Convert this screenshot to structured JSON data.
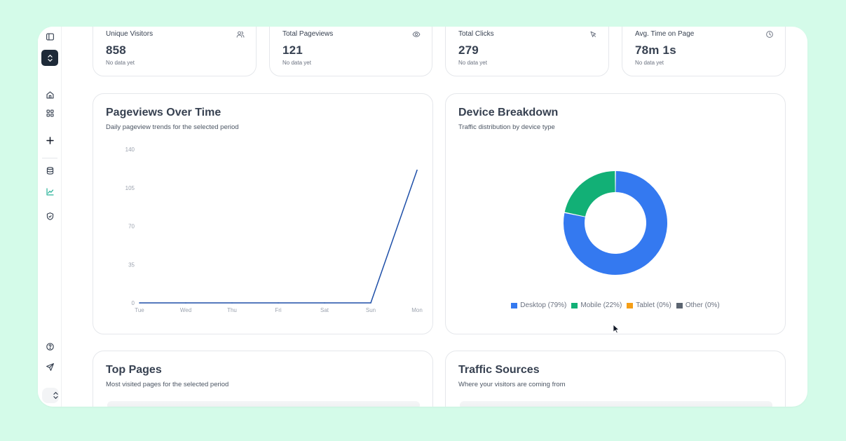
{
  "sidebar": {
    "icons": [
      "panel-toggle-icon",
      "workspace-switcher-icon",
      "home-icon",
      "apps-grid-icon",
      "plus-icon",
      "database-icon",
      "analytics-chart-icon",
      "shield-check-icon",
      "help-circle-icon",
      "send-icon",
      "user-menu-chevron-icon"
    ],
    "active_icon": "analytics-chart-icon",
    "active_color": "#2bb39a"
  },
  "stats": [
    {
      "label": "Unique Visitors",
      "value": "858",
      "note": "No data yet",
      "icon": "users-icon"
    },
    {
      "label": "Total Pageviews",
      "value": "121",
      "note": "No data yet",
      "icon": "eye-icon"
    },
    {
      "label": "Total Clicks",
      "value": "279",
      "note": "No data yet",
      "icon": "cursor-click-icon"
    },
    {
      "label": "Avg. Time on Page",
      "value": "78m 1s",
      "note": "No data yet",
      "icon": "clock-icon"
    }
  ],
  "pageviews": {
    "title": "Pageviews Over Time",
    "subtitle": "Daily pageview trends for the selected period"
  },
  "devices": {
    "title": "Device Breakdown",
    "subtitle": "Traffic distribution by device type"
  },
  "top_pages": {
    "title": "Top Pages",
    "subtitle": "Most visited pages for the selected period"
  },
  "traffic_sources": {
    "title": "Traffic Sources",
    "subtitle": "Where your visitors are coming from"
  },
  "chart_data": [
    {
      "type": "line",
      "title": "Pageviews Over Time",
      "categories": [
        "Tue",
        "Wed",
        "Thu",
        "Fri",
        "Sat",
        "Sun",
        "Mon"
      ],
      "values": [
        0,
        0,
        0,
        0,
        0,
        0,
        121
      ],
      "yticks": [
        "0",
        "35",
        "70",
        "105",
        "140"
      ],
      "ylim": [
        0,
        140
      ],
      "grid": false,
      "color": "#1e4fa8"
    },
    {
      "type": "pie",
      "title": "Device Breakdown",
      "donut": true,
      "slices": [
        {
          "label": "Desktop (79%)",
          "value": 79,
          "color": "#3479f0"
        },
        {
          "label": "Mobile (22%)",
          "value": 22,
          "color": "#12b076"
        },
        {
          "label": "Tablet (0%)",
          "value": 0,
          "color": "#f59e16"
        },
        {
          "label": "Other (0%)",
          "value": 0,
          "color": "#5b6470"
        }
      ],
      "legend": "bottom"
    }
  ]
}
